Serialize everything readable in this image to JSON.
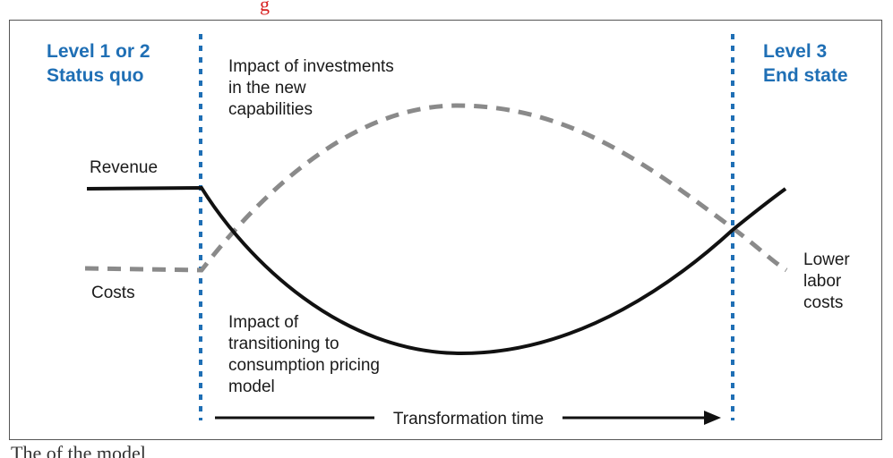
{
  "captions": {
    "top": "g",
    "bottom": "The     of the model"
  },
  "levels": {
    "left": {
      "line1": "Level 1 or 2",
      "line2": "Status quo"
    },
    "right": {
      "line1": "Level 3",
      "line2": "End state"
    }
  },
  "annotations": {
    "investments": [
      "Impact of investments",
      "in the new",
      "capabilities"
    ],
    "transitioning": [
      "Impact of",
      "transitioning to",
      "consumption pricing",
      "model"
    ],
    "lower_labor": [
      "Lower",
      "labor",
      "costs"
    ]
  },
  "series_labels": {
    "revenue": "Revenue",
    "costs": "Costs"
  },
  "timeline": {
    "label": "Transformation time"
  },
  "colors": {
    "level_blue": "#1f6fb5",
    "divider_blue": "#1f6fb5",
    "revenue_line": "#111111",
    "costs_line": "#8a8a8a",
    "caption_red": "#d81f1f"
  }
}
